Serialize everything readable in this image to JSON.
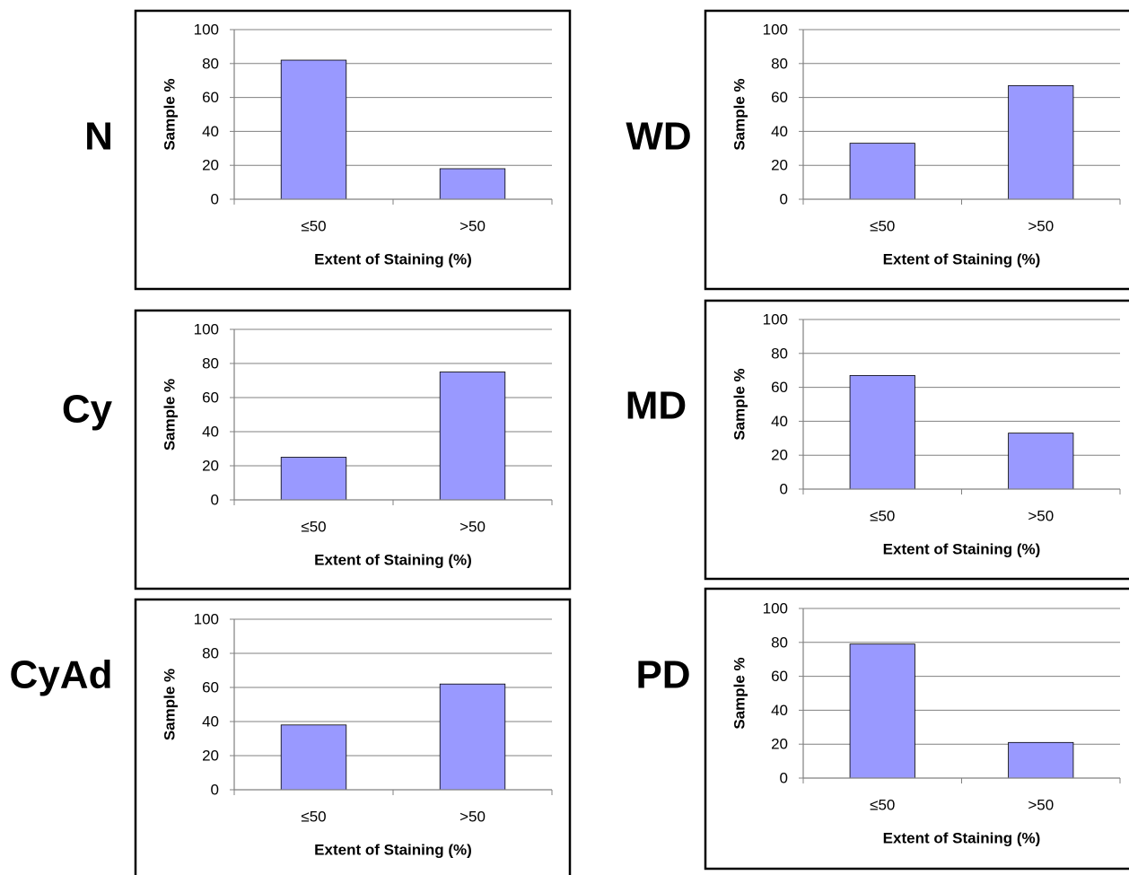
{
  "chart_data": [
    {
      "panel": "N",
      "type": "bar",
      "categories": [
        "≤50",
        ">50"
      ],
      "values": [
        82,
        18
      ],
      "xlabel": "Extent of Staining (%)",
      "ylabel": "Sample %",
      "ylim": [
        0,
        100
      ],
      "yticks": [
        0,
        20,
        40,
        60,
        80,
        100
      ],
      "grid": true,
      "bar_color": "#9999ff"
    },
    {
      "panel": "Cy",
      "type": "bar",
      "categories": [
        "≤50",
        ">50"
      ],
      "values": [
        25,
        75
      ],
      "xlabel": "Extent of Staining (%)",
      "ylabel": "Sample %",
      "ylim": [
        0,
        100
      ],
      "yticks": [
        0,
        20,
        40,
        60,
        80,
        100
      ],
      "grid": true,
      "bar_color": "#9999ff"
    },
    {
      "panel": "CyAd",
      "type": "bar",
      "categories": [
        "≤50",
        ">50"
      ],
      "values": [
        38,
        62
      ],
      "xlabel": "Extent of Staining (%)",
      "ylabel": "Sample %",
      "ylim": [
        0,
        100
      ],
      "yticks": [
        0,
        20,
        40,
        60,
        80,
        100
      ],
      "grid": true,
      "bar_color": "#9999ff"
    },
    {
      "panel": "WD",
      "type": "bar",
      "categories": [
        "≤50",
        ">50"
      ],
      "values": [
        33,
        67
      ],
      "xlabel": "Extent of Staining (%)",
      "ylabel": "Sample %",
      "ylim": [
        0,
        100
      ],
      "yticks": [
        0,
        20,
        40,
        60,
        80,
        100
      ],
      "grid": true,
      "bar_color": "#9999ff"
    },
    {
      "panel": "MD",
      "type": "bar",
      "categories": [
        "≤50",
        ">50"
      ],
      "values": [
        67,
        33
      ],
      "xlabel": "Extent of Staining (%)",
      "ylabel": "Sample %",
      "ylim": [
        0,
        100
      ],
      "yticks": [
        0,
        20,
        40,
        60,
        80,
        100
      ],
      "grid": true,
      "bar_color": "#9999ff"
    },
    {
      "panel": "PD",
      "type": "bar",
      "categories": [
        "≤50",
        ">50"
      ],
      "values": [
        79,
        21
      ],
      "xlabel": "Extent of Staining (%)",
      "ylabel": "Sample %",
      "ylim": [
        0,
        100
      ],
      "yticks": [
        0,
        20,
        40,
        60,
        80,
        100
      ],
      "grid": true,
      "bar_color": "#9999ff"
    }
  ]
}
